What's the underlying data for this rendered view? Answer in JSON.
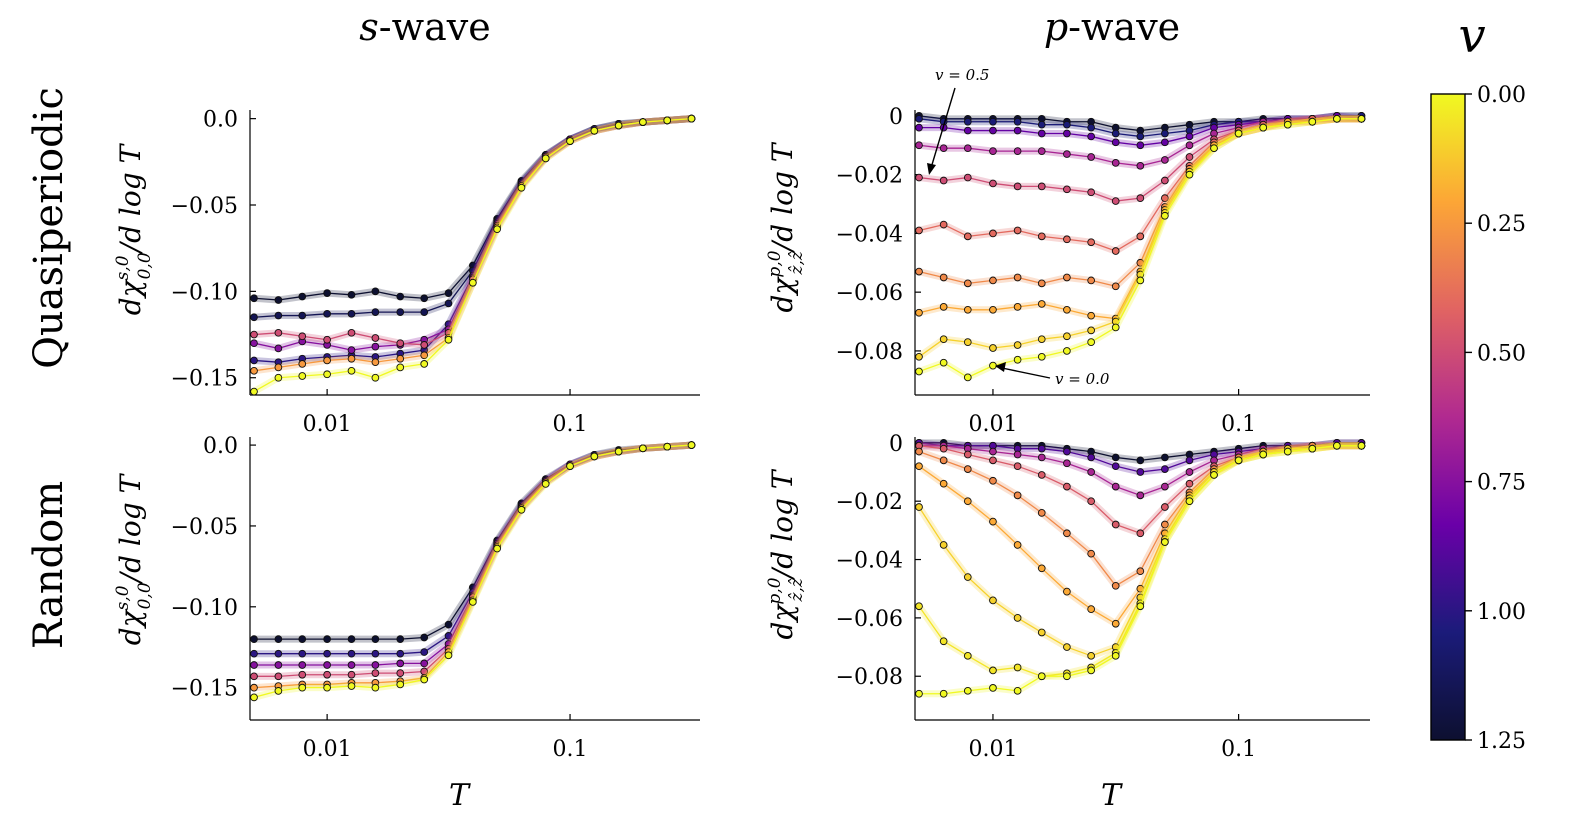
{
  "figure": {
    "col_titles": [
      {
        "italic": "s",
        "rest": "-wave"
      },
      {
        "italic": "p",
        "rest": "-wave"
      }
    ],
    "row_titles": [
      "Quasiperiodic",
      "Random"
    ],
    "xlabel": "T",
    "ylabels": {
      "swave": {
        "main": "dχ",
        "sup": "s,0",
        "sub": "0,0",
        "tail": "/d log T"
      },
      "pwave": {
        "main": "dχ",
        "sup": "p,0",
        "sub": "ẑ,ẑ",
        "tail": "/d log T"
      }
    },
    "colorbar": {
      "label": "v",
      "ticks": [
        "0.00",
        "0.25",
        "0.50",
        "0.75",
        "1.00",
        "1.25"
      ],
      "vmin": 0.0,
      "vmax": 1.25,
      "colors": [
        "#f0f921",
        "#fca636",
        "#e16462",
        "#b12a90",
        "#6a00a8",
        "#1b1b7a",
        "#0d1030"
      ]
    },
    "annotations": [
      {
        "text": "v = 0.5",
        "panel": "quasi_p"
      },
      {
        "text": "v = 0.0",
        "panel": "quasi_p"
      }
    ]
  },
  "chart_data": [
    {
      "id": "quasi_s",
      "type": "line",
      "row": "Quasiperiodic",
      "col": "s-wave",
      "xscale": "log",
      "xlim": [
        0.005,
        0.33
      ],
      "xticks": [
        0.01,
        0.1
      ],
      "xtick_labels": [
        "0.01",
        "0.1"
      ],
      "ylim": [
        -0.16,
        0.005
      ],
      "yticks": [
        0.0,
        -0.05,
        -0.1,
        -0.15
      ],
      "ytick_labels": [
        "0.0",
        "−0.05",
        "−0.10",
        "−0.15"
      ],
      "T": [
        0.005,
        0.0063,
        0.0079,
        0.01,
        0.0126,
        0.0158,
        0.02,
        0.0251,
        0.0316,
        0.0398,
        0.0501,
        0.0631,
        0.0794,
        0.1,
        0.1259,
        0.1585,
        0.1995,
        0.2512,
        0.3162
      ],
      "series": [
        {
          "v": 0.0,
          "values": [
            -0.158,
            -0.15,
            -0.149,
            -0.148,
            -0.146,
            -0.15,
            -0.144,
            -0.142,
            -0.128,
            -0.095,
            -0.064,
            -0.04,
            -0.023,
            -0.013,
            -0.007,
            -0.004,
            -0.002,
            -0.001,
            0.0
          ]
        },
        {
          "v": 0.25,
          "values": [
            -0.146,
            -0.144,
            -0.142,
            -0.14,
            -0.139,
            -0.141,
            -0.139,
            -0.137,
            -0.127,
            -0.095,
            -0.063,
            -0.039,
            -0.023,
            -0.013,
            -0.007,
            -0.004,
            -0.002,
            -0.001,
            0.0
          ]
        },
        {
          "v": 0.5,
          "values": [
            -0.125,
            -0.124,
            -0.126,
            -0.128,
            -0.124,
            -0.127,
            -0.13,
            -0.131,
            -0.124,
            -0.093,
            -0.062,
            -0.039,
            -0.022,
            -0.013,
            -0.007,
            -0.004,
            -0.002,
            -0.001,
            0.0
          ]
        },
        {
          "v": 0.75,
          "values": [
            -0.13,
            -0.133,
            -0.129,
            -0.131,
            -0.134,
            -0.132,
            -0.131,
            -0.128,
            -0.122,
            -0.092,
            -0.061,
            -0.038,
            -0.022,
            -0.012,
            -0.007,
            -0.004,
            -0.002,
            -0.001,
            0.0
          ]
        },
        {
          "v": 1.0,
          "values": [
            -0.14,
            -0.141,
            -0.139,
            -0.138,
            -0.137,
            -0.138,
            -0.136,
            -0.134,
            -0.119,
            -0.091,
            -0.06,
            -0.037,
            -0.022,
            -0.012,
            -0.006,
            -0.004,
            -0.002,
            -0.001,
            0.0
          ]
        },
        {
          "v": 1.15,
          "values": [
            -0.115,
            -0.114,
            -0.114,
            -0.113,
            -0.113,
            -0.112,
            -0.112,
            -0.112,
            -0.107,
            -0.088,
            -0.059,
            -0.037,
            -0.021,
            -0.012,
            -0.006,
            -0.003,
            -0.002,
            -0.001,
            0.0
          ]
        },
        {
          "v": 1.25,
          "values": [
            -0.104,
            -0.105,
            -0.103,
            -0.101,
            -0.102,
            -0.1,
            -0.103,
            -0.104,
            -0.101,
            -0.085,
            -0.058,
            -0.036,
            -0.021,
            -0.012,
            -0.006,
            -0.003,
            -0.002,
            -0.001,
            0.0
          ]
        }
      ]
    },
    {
      "id": "quasi_p",
      "type": "line",
      "row": "Quasiperiodic",
      "col": "p-wave",
      "xscale": "log",
      "xlim": [
        0.005,
        0.33
      ],
      "xticks": [
        0.01,
        0.1
      ],
      "xtick_labels": [
        "0.01",
        "0.1"
      ],
      "ylim": [
        -0.095,
        0.002
      ],
      "yticks": [
        0,
        -0.02,
        -0.04,
        -0.06,
        -0.08
      ],
      "ytick_labels": [
        "0",
        "−0.02",
        "−0.04",
        "−0.06",
        "−0.08"
      ],
      "T": [
        0.005,
        0.0063,
        0.0079,
        0.01,
        0.0126,
        0.0158,
        0.02,
        0.0251,
        0.0316,
        0.0398,
        0.0501,
        0.0631,
        0.0794,
        0.1,
        0.1259,
        0.1585,
        0.1995,
        0.2512,
        0.3162
      ],
      "series": [
        {
          "v": 0.0,
          "values": [
            -0.087,
            -0.084,
            -0.089,
            -0.085,
            -0.083,
            -0.082,
            -0.08,
            -0.077,
            -0.072,
            -0.056,
            -0.034,
            -0.02,
            -0.011,
            -0.006,
            -0.004,
            -0.003,
            -0.002,
            -0.001,
            -0.001
          ]
        },
        {
          "v": 0.1,
          "values": [
            -0.082,
            -0.076,
            -0.077,
            -0.079,
            -0.078,
            -0.076,
            -0.075,
            -0.073,
            -0.07,
            -0.054,
            -0.033,
            -0.019,
            -0.011,
            -0.006,
            -0.004,
            -0.003,
            -0.002,
            -0.001,
            -0.001
          ]
        },
        {
          "v": 0.2,
          "values": [
            -0.067,
            -0.065,
            -0.066,
            -0.066,
            -0.065,
            -0.064,
            -0.066,
            -0.068,
            -0.069,
            -0.053,
            -0.032,
            -0.019,
            -0.01,
            -0.006,
            -0.004,
            -0.002,
            -0.002,
            -0.001,
            -0.001
          ]
        },
        {
          "v": 0.3,
          "values": [
            -0.053,
            -0.055,
            -0.057,
            -0.056,
            -0.055,
            -0.057,
            -0.055,
            -0.056,
            -0.058,
            -0.05,
            -0.031,
            -0.018,
            -0.01,
            -0.006,
            -0.004,
            -0.002,
            -0.002,
            -0.001,
            -0.001
          ]
        },
        {
          "v": 0.4,
          "values": [
            -0.039,
            -0.037,
            -0.041,
            -0.04,
            -0.039,
            -0.041,
            -0.042,
            -0.043,
            -0.046,
            -0.041,
            -0.028,
            -0.017,
            -0.009,
            -0.005,
            -0.003,
            -0.002,
            -0.001,
            -0.001,
            -0.001
          ]
        },
        {
          "v": 0.5,
          "values": [
            -0.021,
            -0.022,
            -0.021,
            -0.023,
            -0.024,
            -0.024,
            -0.025,
            -0.026,
            -0.029,
            -0.028,
            -0.022,
            -0.014,
            -0.008,
            -0.005,
            -0.003,
            -0.002,
            -0.001,
            -0.001,
            -0.001
          ]
        },
        {
          "v": 0.65,
          "values": [
            -0.01,
            -0.011,
            -0.011,
            -0.012,
            -0.012,
            -0.012,
            -0.013,
            -0.014,
            -0.016,
            -0.017,
            -0.015,
            -0.01,
            -0.006,
            -0.004,
            -0.002,
            -0.002,
            -0.001,
            -0.001,
            -0.001
          ]
        },
        {
          "v": 0.85,
          "values": [
            -0.004,
            -0.004,
            -0.005,
            -0.005,
            -0.005,
            -0.006,
            -0.006,
            -0.007,
            -0.009,
            -0.01,
            -0.009,
            -0.007,
            -0.004,
            -0.003,
            -0.002,
            -0.001,
            -0.001,
            0.0,
            -0.001
          ]
        },
        {
          "v": 1.05,
          "values": [
            -0.001,
            -0.002,
            -0.002,
            -0.002,
            -0.002,
            -0.003,
            -0.003,
            -0.004,
            -0.006,
            -0.007,
            -0.006,
            -0.005,
            -0.003,
            -0.002,
            -0.002,
            -0.001,
            -0.001,
            0.0,
            0.0
          ]
        },
        {
          "v": 1.25,
          "values": [
            0.0,
            -0.001,
            -0.001,
            -0.001,
            -0.001,
            -0.001,
            -0.002,
            -0.002,
            -0.004,
            -0.005,
            -0.004,
            -0.003,
            -0.002,
            -0.002,
            -0.001,
            -0.001,
            -0.001,
            0.0,
            0.0
          ]
        }
      ]
    },
    {
      "id": "random_s",
      "type": "line",
      "row": "Random",
      "col": "s-wave",
      "xscale": "log",
      "xlim": [
        0.005,
        0.33
      ],
      "xticks": [
        0.01,
        0.1
      ],
      "xtick_labels": [
        "0.01",
        "0.1"
      ],
      "ylim": [
        -0.17,
        0.005
      ],
      "yticks": [
        0.0,
        -0.05,
        -0.1,
        -0.15
      ],
      "ytick_labels": [
        "0.0",
        "−0.05",
        "−0.10",
        "−0.15"
      ],
      "T": [
        0.005,
        0.0063,
        0.0079,
        0.01,
        0.0126,
        0.0158,
        0.02,
        0.0251,
        0.0316,
        0.0398,
        0.0501,
        0.0631,
        0.0794,
        0.1,
        0.1259,
        0.1585,
        0.1995,
        0.2512,
        0.3162
      ],
      "series": [
        {
          "v": 0.0,
          "values": [
            -0.156,
            -0.152,
            -0.15,
            -0.15,
            -0.149,
            -0.15,
            -0.148,
            -0.145,
            -0.13,
            -0.097,
            -0.064,
            -0.04,
            -0.024,
            -0.013,
            -0.007,
            -0.004,
            -0.002,
            -0.001,
            0.0
          ]
        },
        {
          "v": 0.25,
          "values": [
            -0.15,
            -0.149,
            -0.148,
            -0.148,
            -0.147,
            -0.147,
            -0.146,
            -0.144,
            -0.128,
            -0.096,
            -0.063,
            -0.039,
            -0.023,
            -0.013,
            -0.007,
            -0.004,
            -0.002,
            -0.001,
            0.0
          ]
        },
        {
          "v": 0.5,
          "values": [
            -0.143,
            -0.143,
            -0.142,
            -0.142,
            -0.142,
            -0.141,
            -0.141,
            -0.14,
            -0.126,
            -0.094,
            -0.062,
            -0.039,
            -0.023,
            -0.013,
            -0.007,
            -0.004,
            -0.002,
            -0.001,
            0.0
          ]
        },
        {
          "v": 0.75,
          "values": [
            -0.136,
            -0.136,
            -0.136,
            -0.136,
            -0.136,
            -0.136,
            -0.135,
            -0.135,
            -0.123,
            -0.093,
            -0.061,
            -0.038,
            -0.022,
            -0.012,
            -0.007,
            -0.004,
            -0.002,
            -0.001,
            0.0
          ]
        },
        {
          "v": 1.0,
          "values": [
            -0.129,
            -0.129,
            -0.129,
            -0.129,
            -0.129,
            -0.129,
            -0.129,
            -0.128,
            -0.118,
            -0.091,
            -0.06,
            -0.037,
            -0.022,
            -0.012,
            -0.006,
            -0.004,
            -0.002,
            -0.001,
            0.0
          ]
        },
        {
          "v": 1.25,
          "values": [
            -0.12,
            -0.12,
            -0.12,
            -0.12,
            -0.12,
            -0.12,
            -0.12,
            -0.119,
            -0.111,
            -0.088,
            -0.059,
            -0.036,
            -0.021,
            -0.012,
            -0.006,
            -0.003,
            -0.002,
            -0.001,
            0.0
          ]
        }
      ]
    },
    {
      "id": "random_p",
      "type": "line",
      "row": "Random",
      "col": "p-wave",
      "xscale": "log",
      "xlim": [
        0.005,
        0.33
      ],
      "xticks": [
        0.01,
        0.1
      ],
      "xtick_labels": [
        "0.01",
        "0.1"
      ],
      "ylim": [
        -0.095,
        0.002
      ],
      "yticks": [
        0,
        -0.02,
        -0.04,
        -0.06,
        -0.08
      ],
      "ytick_labels": [
        "0",
        "−0.02",
        "−0.04",
        "−0.06",
        "−0.08"
      ],
      "T": [
        0.005,
        0.0063,
        0.0079,
        0.01,
        0.0126,
        0.0158,
        0.02,
        0.0251,
        0.0316,
        0.0398,
        0.0501,
        0.0631,
        0.0794,
        0.1,
        0.1259,
        0.1585,
        0.1995,
        0.2512,
        0.3162
      ],
      "series": [
        {
          "v": 0.0,
          "values": [
            -0.086,
            -0.086,
            -0.085,
            -0.084,
            -0.085,
            -0.08,
            -0.08,
            -0.078,
            -0.073,
            -0.056,
            -0.034,
            -0.02,
            -0.011,
            -0.006,
            -0.004,
            -0.003,
            -0.002,
            -0.001,
            -0.001
          ]
        },
        {
          "v": 0.05,
          "values": [
            -0.056,
            -0.068,
            -0.073,
            -0.078,
            -0.077,
            -0.08,
            -0.079,
            -0.077,
            -0.072,
            -0.055,
            -0.034,
            -0.02,
            -0.011,
            -0.006,
            -0.004,
            -0.003,
            -0.002,
            -0.001,
            -0.001
          ]
        },
        {
          "v": 0.1,
          "values": [
            -0.022,
            -0.035,
            -0.046,
            -0.054,
            -0.06,
            -0.065,
            -0.07,
            -0.073,
            -0.07,
            -0.053,
            -0.033,
            -0.019,
            -0.01,
            -0.006,
            -0.004,
            -0.002,
            -0.002,
            -0.001,
            -0.001
          ]
        },
        {
          "v": 0.2,
          "values": [
            -0.008,
            -0.014,
            -0.02,
            -0.027,
            -0.035,
            -0.043,
            -0.051,
            -0.057,
            -0.062,
            -0.05,
            -0.031,
            -0.018,
            -0.01,
            -0.006,
            -0.003,
            -0.002,
            -0.002,
            -0.001,
            -0.001
          ]
        },
        {
          "v": 0.3,
          "values": [
            -0.003,
            -0.006,
            -0.009,
            -0.013,
            -0.018,
            -0.024,
            -0.031,
            -0.038,
            -0.049,
            -0.044,
            -0.028,
            -0.017,
            -0.009,
            -0.005,
            -0.003,
            -0.002,
            -0.001,
            -0.001,
            -0.001
          ]
        },
        {
          "v": 0.45,
          "values": [
            -0.001,
            -0.002,
            -0.004,
            -0.006,
            -0.008,
            -0.011,
            -0.015,
            -0.02,
            -0.028,
            -0.031,
            -0.022,
            -0.014,
            -0.008,
            -0.005,
            -0.003,
            -0.002,
            -0.001,
            -0.001,
            -0.001
          ]
        },
        {
          "v": 0.65,
          "values": [
            -0.001,
            -0.001,
            -0.002,
            -0.003,
            -0.004,
            -0.005,
            -0.007,
            -0.01,
            -0.015,
            -0.018,
            -0.015,
            -0.01,
            -0.006,
            -0.004,
            -0.002,
            -0.002,
            -0.001,
            -0.001,
            -0.001
          ]
        },
        {
          "v": 0.9,
          "values": [
            0.0,
            -0.001,
            -0.001,
            -0.001,
            -0.002,
            -0.002,
            -0.003,
            -0.005,
            -0.008,
            -0.01,
            -0.009,
            -0.006,
            -0.004,
            -0.003,
            -0.002,
            -0.001,
            -0.001,
            0.0,
            0.0
          ]
        },
        {
          "v": 1.25,
          "values": [
            0.0,
            0.0,
            -0.001,
            -0.001,
            -0.001,
            -0.001,
            -0.002,
            -0.003,
            -0.005,
            -0.006,
            -0.005,
            -0.004,
            -0.003,
            -0.002,
            -0.001,
            -0.001,
            -0.001,
            0.0,
            0.0
          ]
        }
      ]
    }
  ]
}
